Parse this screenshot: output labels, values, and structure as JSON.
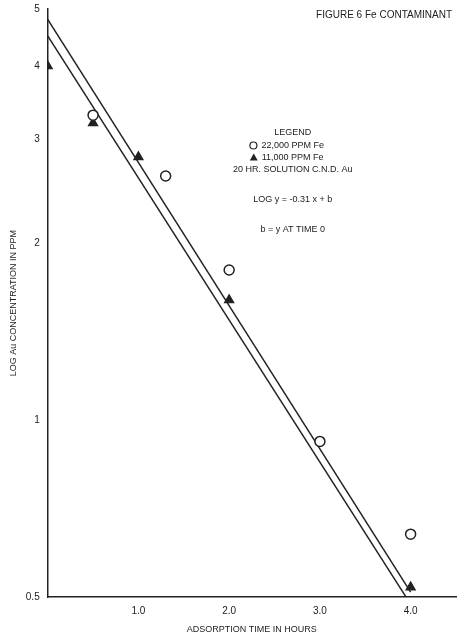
{
  "chart_data": {
    "type": "scatter",
    "title": "FIGURE 6 Fe CONTAMINANT",
    "x_label": "ADSORPTION TIME IN HOURS",
    "y_label": "LOG Au CONCENTRATION IN PPM",
    "log": "y",
    "grid": false,
    "xlim": [
      0,
      4.5
    ],
    "xticks": [
      {
        "value": 1,
        "label": "1.0"
      },
      {
        "value": 2,
        "label": "2.0"
      },
      {
        "value": 3,
        "label": "3.0"
      },
      {
        "value": 4,
        "label": "4.0"
      }
    ],
    "ylim": [
      0.5,
      5
    ],
    "yticks": [
      0.5,
      1,
      2,
      3,
      4,
      5
    ],
    "annotations": [
      "LEGEND",
      "20 HR. SOLUTION C.N.D. Au",
      "LOG y = -0.31 x + b",
      "b = y AT TIME 0"
    ],
    "series": [
      {
        "name": "22,000 PPM Fe",
        "type": "scatter",
        "marker": "circle",
        "color": "#222222",
        "x": [
          0.5,
          1.3,
          2.0,
          3.0,
          4.0
        ],
        "values": [
          3.3,
          2.6,
          1.8,
          0.92,
          0.64
        ]
      },
      {
        "name": "11,000 PPM Fe",
        "type": "scatter",
        "marker": "triangle",
        "color": "#222222",
        "x": [
          0,
          0.5,
          1.0,
          2.0,
          4.0
        ],
        "values": [
          4.0,
          3.2,
          2.8,
          1.6,
          0.52
        ]
      },
      {
        "type": "line",
        "marker": "none",
        "line_style": "solid",
        "color": "#222222",
        "x": [
          0,
          4.0
        ],
        "values": [
          4.8,
          0.51
        ]
      },
      {
        "type": "line",
        "marker": "none",
        "line_style": "solid",
        "color": "#222222",
        "x": [
          0,
          3.95
        ],
        "values": [
          4.5,
          0.5
        ]
      }
    ]
  }
}
